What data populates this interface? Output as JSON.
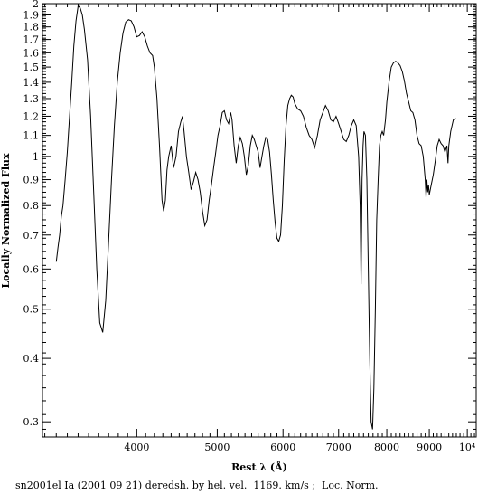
{
  "chart_data": {
    "type": "line",
    "title": "",
    "caption": "sn2001el Ia (2001 09 21) deredsh. by hel. vel.  1169. km/s ;  Loc. Norm.",
    "xlabel": "Rest λ (Å)",
    "ylabel": "Locally Normalized Flux",
    "x_scale": "log",
    "y_scale": "log",
    "xlim": [
      3080,
      10250
    ],
    "ylim": [
      0.28,
      2.0
    ],
    "x_ticks": [
      {
        "value": 4000,
        "label": "4000"
      },
      {
        "value": 5000,
        "label": "5000"
      },
      {
        "value": 6000,
        "label": "6000"
      },
      {
        "value": 7000,
        "label": "7000"
      },
      {
        "value": 8000,
        "label": "8000"
      },
      {
        "value": 9000,
        "label": "9000"
      },
      {
        "value": 10000,
        "label": "10⁴"
      }
    ],
    "y_ticks": [
      {
        "value": 0.3,
        "label": "0.3"
      },
      {
        "value": 0.4,
        "label": "0.4"
      },
      {
        "value": 0.5,
        "label": "0.5"
      },
      {
        "value": 0.6,
        "label": "0.6"
      },
      {
        "value": 0.7,
        "label": "0.7"
      },
      {
        "value": 0.8,
        "label": "0.8"
      },
      {
        "value": 0.9,
        "label": "0.9"
      },
      {
        "value": 1.0,
        "label": "1"
      },
      {
        "value": 1.1,
        "label": "1.1"
      },
      {
        "value": 1.2,
        "label": "1.2"
      },
      {
        "value": 1.3,
        "label": "1.3"
      },
      {
        "value": 1.4,
        "label": "1.4"
      },
      {
        "value": 1.5,
        "label": "1.5"
      },
      {
        "value": 1.6,
        "label": "1.6"
      },
      {
        "value": 1.7,
        "label": "1.7"
      },
      {
        "value": 1.8,
        "label": "1.8"
      },
      {
        "value": 1.9,
        "label": "1.9"
      },
      {
        "value": 2.0,
        "label": "2"
      }
    ],
    "series": [
      {
        "color": "#000000",
        "points": [
          [
            3200,
            0.62
          ],
          [
            3215,
            0.66
          ],
          [
            3230,
            0.7
          ],
          [
            3245,
            0.76
          ],
          [
            3260,
            0.8
          ],
          [
            3280,
            0.9
          ],
          [
            3300,
            1.02
          ],
          [
            3320,
            1.2
          ],
          [
            3340,
            1.4
          ],
          [
            3360,
            1.65
          ],
          [
            3380,
            1.85
          ],
          [
            3400,
            1.98
          ],
          [
            3420,
            1.96
          ],
          [
            3440,
            1.9
          ],
          [
            3460,
            1.78
          ],
          [
            3490,
            1.55
          ],
          [
            3520,
            1.2
          ],
          [
            3550,
            0.85
          ],
          [
            3580,
            0.6
          ],
          [
            3610,
            0.47
          ],
          [
            3640,
            0.45
          ],
          [
            3670,
            0.52
          ],
          [
            3700,
            0.68
          ],
          [
            3730,
            0.9
          ],
          [
            3760,
            1.15
          ],
          [
            3790,
            1.4
          ],
          [
            3820,
            1.6
          ],
          [
            3850,
            1.75
          ],
          [
            3880,
            1.84
          ],
          [
            3910,
            1.86
          ],
          [
            3940,
            1.85
          ],
          [
            3970,
            1.8
          ],
          [
            4000,
            1.72
          ],
          [
            4030,
            1.73
          ],
          [
            4060,
            1.76
          ],
          [
            4090,
            1.72
          ],
          [
            4120,
            1.65
          ],
          [
            4150,
            1.6
          ],
          [
            4180,
            1.58
          ],
          [
            4200,
            1.5
          ],
          [
            4230,
            1.3
          ],
          [
            4260,
            1.05
          ],
          [
            4290,
            0.82
          ],
          [
            4310,
            0.78
          ],
          [
            4330,
            0.82
          ],
          [
            4350,
            0.94
          ],
          [
            4370,
            1.0
          ],
          [
            4400,
            1.05
          ],
          [
            4430,
            0.95
          ],
          [
            4460,
            1.0
          ],
          [
            4490,
            1.12
          ],
          [
            4520,
            1.17
          ],
          [
            4540,
            1.2
          ],
          [
            4560,
            1.12
          ],
          [
            4590,
            1.0
          ],
          [
            4620,
            0.93
          ],
          [
            4650,
            0.86
          ],
          [
            4680,
            0.89
          ],
          [
            4710,
            0.93
          ],
          [
            4740,
            0.9
          ],
          [
            4770,
            0.85
          ],
          [
            4800,
            0.78
          ],
          [
            4830,
            0.73
          ],
          [
            4860,
            0.75
          ],
          [
            4890,
            0.82
          ],
          [
            4920,
            0.88
          ],
          [
            4950,
            0.95
          ],
          [
            4980,
            1.02
          ],
          [
            5010,
            1.1
          ],
          [
            5040,
            1.15
          ],
          [
            5070,
            1.22
          ],
          [
            5100,
            1.23
          ],
          [
            5130,
            1.18
          ],
          [
            5160,
            1.16
          ],
          [
            5190,
            1.22
          ],
          [
            5210,
            1.18
          ],
          [
            5240,
            1.05
          ],
          [
            5270,
            0.97
          ],
          [
            5300,
            1.05
          ],
          [
            5330,
            1.09
          ],
          [
            5360,
            1.06
          ],
          [
            5390,
            1.0
          ],
          [
            5420,
            0.92
          ],
          [
            5450,
            0.96
          ],
          [
            5480,
            1.05
          ],
          [
            5510,
            1.1
          ],
          [
            5540,
            1.08
          ],
          [
            5570,
            1.05
          ],
          [
            5600,
            1.02
          ],
          [
            5630,
            0.95
          ],
          [
            5660,
            1.0
          ],
          [
            5690,
            1.05
          ],
          [
            5720,
            1.09
          ],
          [
            5750,
            1.08
          ],
          [
            5780,
            1.02
          ],
          [
            5810,
            0.92
          ],
          [
            5840,
            0.82
          ],
          [
            5870,
            0.74
          ],
          [
            5900,
            0.69
          ],
          [
            5930,
            0.68
          ],
          [
            5960,
            0.7
          ],
          [
            5990,
            0.8
          ],
          [
            6020,
            0.98
          ],
          [
            6050,
            1.15
          ],
          [
            6080,
            1.26
          ],
          [
            6110,
            1.3
          ],
          [
            6140,
            1.32
          ],
          [
            6170,
            1.31
          ],
          [
            6200,
            1.27
          ],
          [
            6250,
            1.24
          ],
          [
            6300,
            1.23
          ],
          [
            6350,
            1.2
          ],
          [
            6400,
            1.14
          ],
          [
            6450,
            1.1
          ],
          [
            6500,
            1.08
          ],
          [
            6550,
            1.04
          ],
          [
            6600,
            1.1
          ],
          [
            6650,
            1.18
          ],
          [
            6700,
            1.22
          ],
          [
            6750,
            1.26
          ],
          [
            6800,
            1.23
          ],
          [
            6850,
            1.18
          ],
          [
            6900,
            1.17
          ],
          [
            6950,
            1.2
          ],
          [
            7000,
            1.16
          ],
          [
            7050,
            1.12
          ],
          [
            7100,
            1.08
          ],
          [
            7150,
            1.07
          ],
          [
            7200,
            1.1
          ],
          [
            7250,
            1.15
          ],
          [
            7300,
            1.18
          ],
          [
            7350,
            1.15
          ],
          [
            7400,
            1.0
          ],
          [
            7430,
            0.8
          ],
          [
            7450,
            0.56
          ],
          [
            7470,
            0.9
          ],
          [
            7490,
            1.05
          ],
          [
            7510,
            1.12
          ],
          [
            7540,
            1.1
          ],
          [
            7570,
            0.9
          ],
          [
            7600,
            0.6
          ],
          [
            7630,
            0.4
          ],
          [
            7660,
            0.3
          ],
          [
            7690,
            0.29
          ],
          [
            7720,
            0.35
          ],
          [
            7750,
            0.5
          ],
          [
            7780,
            0.75
          ],
          [
            7810,
            0.9
          ],
          [
            7840,
            1.05
          ],
          [
            7870,
            1.1
          ],
          [
            7900,
            1.12
          ],
          [
            7930,
            1.1
          ],
          [
            7970,
            1.18
          ],
          [
            8000,
            1.28
          ],
          [
            8050,
            1.4
          ],
          [
            8100,
            1.5
          ],
          [
            8150,
            1.53
          ],
          [
            8200,
            1.54
          ],
          [
            8250,
            1.53
          ],
          [
            8300,
            1.51
          ],
          [
            8350,
            1.47
          ],
          [
            8400,
            1.41
          ],
          [
            8450,
            1.33
          ],
          [
            8500,
            1.28
          ],
          [
            8550,
            1.23
          ],
          [
            8600,
            1.22
          ],
          [
            8650,
            1.18
          ],
          [
            8700,
            1.1
          ],
          [
            8750,
            1.06
          ],
          [
            8800,
            1.05
          ],
          [
            8850,
            1.0
          ],
          [
            8900,
            0.9
          ],
          [
            8920,
            0.83
          ],
          [
            8940,
            0.9
          ],
          [
            8960,
            0.85
          ],
          [
            8980,
            0.88
          ],
          [
            9000,
            0.84
          ],
          [
            9050,
            0.88
          ],
          [
            9100,
            0.92
          ],
          [
            9150,
            0.98
          ],
          [
            9200,
            1.05
          ],
          [
            9250,
            1.08
          ],
          [
            9300,
            1.06
          ],
          [
            9350,
            1.05
          ],
          [
            9400,
            1.02
          ],
          [
            9450,
            1.05
          ],
          [
            9480,
            0.97
          ],
          [
            9500,
            1.05
          ],
          [
            9550,
            1.12
          ],
          [
            9620,
            1.18
          ],
          [
            9680,
            1.19
          ]
        ]
      }
    ]
  }
}
